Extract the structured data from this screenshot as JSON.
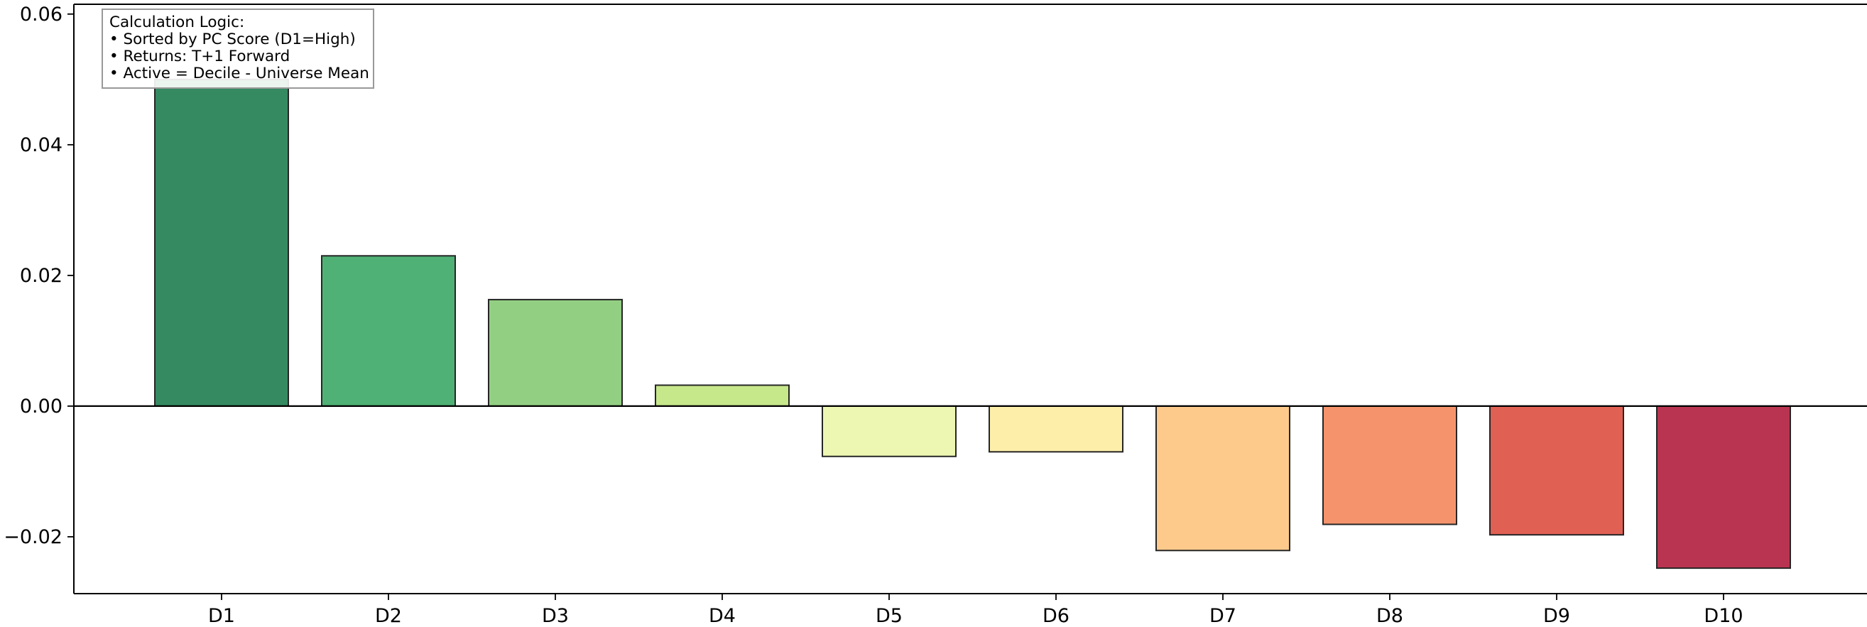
{
  "chart_data": {
    "type": "bar",
    "title": "",
    "xlabel": "",
    "ylabel": "",
    "categories": [
      "D1",
      "D2",
      "D3",
      "D4",
      "D5",
      "D6",
      "D7",
      "D8",
      "D9",
      "D10"
    ],
    "values": [
      0.05,
      0.023,
      0.0163,
      0.0032,
      -0.0077,
      -0.007,
      -0.0221,
      -0.0181,
      -0.0197,
      -0.0248
    ],
    "colors": [
      "#358a61",
      "#4fb175",
      "#93cf83",
      "#c7e78b",
      "#eef7b2",
      "#fdeeaa",
      "#fdca8b",
      "#f5946c",
      "#e16054",
      "#b93450"
    ],
    "ylim": [
      -0.0287,
      0.0615
    ],
    "yticks": [
      -0.02,
      0.0,
      0.02,
      0.04,
      0.06
    ],
    "ytick_labels": [
      "−0.02",
      "0.00",
      "0.02",
      "0.04",
      "0.06"
    ],
    "grid": false,
    "zero_line": true,
    "annotation": {
      "placement": "top-left",
      "lines": [
        "Calculation Logic:",
        "• Sorted by PC Score (D1=High)",
        "• Returns: T+1 Forward",
        "• Active = Decile - Universe Mean"
      ]
    }
  }
}
